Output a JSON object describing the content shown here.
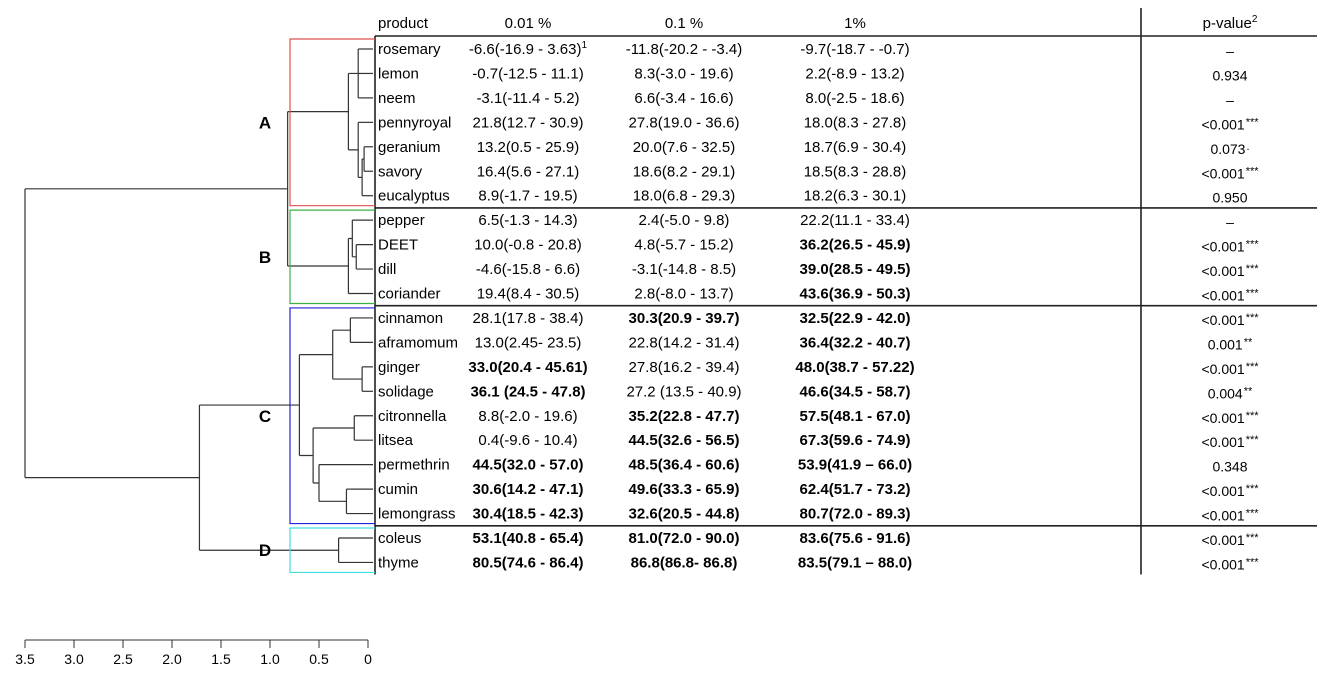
{
  "chart_data": {
    "type": "table",
    "dendrogram": {
      "axis_ticks": [
        "3.5",
        "3.0",
        "2.5",
        "2.0",
        "1.5",
        "1.0",
        "0.5",
        "0"
      ],
      "clusters": [
        {
          "label": "A",
          "color": "#e05050"
        },
        {
          "label": "B",
          "color": "#3cb043"
        },
        {
          "label": "C",
          "color": "#2222dd"
        },
        {
          "label": "D",
          "color": "#40e0e0"
        }
      ]
    },
    "columns": [
      "product",
      "0.01 %",
      "0.1 %",
      "1%",
      "p-value"
    ],
    "pvalue_sup": "2",
    "rows": [
      {
        "product": "rosemary",
        "c1": {
          "v": "-6.6",
          "ci": "(-16.9 - 3.63)",
          "sup": "1",
          "b": false
        },
        "c2": {
          "v": "-11.8",
          "ci": "(-20.2 - -3.4)",
          "b": false
        },
        "c3": {
          "v": "-9.7",
          "ci": "(-18.7 - -0.7)",
          "b": false
        },
        "p": "–",
        "stars": ""
      },
      {
        "product": "lemon",
        "c1": {
          "v": "-0.7",
          "ci": "(-12.5 - 11.1)",
          "b": false
        },
        "c2": {
          "v": "8.3",
          "ci": "(-3.0 - 19.6)",
          "b": false
        },
        "c3": {
          "v": "2.2",
          "ci": "(-8.9 - 13.2)",
          "b": false
        },
        "p": "0.934",
        "stars": ""
      },
      {
        "product": "neem",
        "c1": {
          "v": "-3.1",
          "ci": "(-11.4 - 5.2)",
          "b": false
        },
        "c2": {
          "v": "6.6",
          "ci": "(-3.4 - 16.6)",
          "b": false
        },
        "c3": {
          "v": "8.0",
          "ci": "(-2.5 - 18.6)",
          "b": false
        },
        "p": "–",
        "stars": ""
      },
      {
        "product": "pennyroyal",
        "c1": {
          "v": "21.8",
          "ci": "(12.7 - 30.9)",
          "b": false
        },
        "c2": {
          "v": "27.8",
          "ci": "(19.0 - 36.6)",
          "b": false
        },
        "c3": {
          "v": "18.0",
          "ci": "(8.3 - 27.8)",
          "b": false
        },
        "p": "<0.001",
        "stars": "***"
      },
      {
        "product": "geranium",
        "c1": {
          "v": "13.2",
          "ci": "(0.5 - 25.9)",
          "b": false
        },
        "c2": {
          "v": "20.0",
          "ci": "(7.6 - 32.5)",
          "b": false
        },
        "c3": {
          "v": "18.7",
          "ci": "(6.9 - 30.4)",
          "b": false
        },
        "p": "0.073",
        "stars": "."
      },
      {
        "product": "savory",
        "c1": {
          "v": "16.4",
          "ci": "(5.6 - 27.1)",
          "b": false
        },
        "c2": {
          "v": "18.6",
          "ci": "(8.2 - 29.1)",
          "b": false
        },
        "c3": {
          "v": "18.5",
          "ci": "(8.3 - 28.8)",
          "b": false
        },
        "p": "<0.001",
        "stars": "***"
      },
      {
        "product": "eucalyptus",
        "c1": {
          "v": "8.9",
          "ci": "(-1.7 - 19.5)",
          "b": false
        },
        "c2": {
          "v": "18.0",
          "ci": "(6.8 - 29.3)",
          "b": false
        },
        "c3": {
          "v": "18.2",
          "ci": "(6.3 - 30.1)",
          "b": false
        },
        "p": "0.950",
        "stars": ""
      },
      {
        "product": "pepper",
        "c1": {
          "v": "6.5",
          "ci": "(-1.3 - 14.3)",
          "b": false
        },
        "c2": {
          "v": "2.4",
          "ci": "(-5.0 - 9.8)",
          "b": false
        },
        "c3": {
          "v": "22.2",
          "ci": "(11.1 - 33.4)",
          "b": false
        },
        "p": "–",
        "stars": ""
      },
      {
        "product": "DEET",
        "c1": {
          "v": "10.0",
          "ci": "(-0.8 - 20.8)",
          "b": false
        },
        "c2": {
          "v": "4.8",
          "ci": "(-5.7 - 15.2)",
          "b": false
        },
        "c3": {
          "v": "36.2",
          "ci": "(26.5 - 45.9)",
          "b": true
        },
        "p": "<0.001",
        "stars": "***"
      },
      {
        "product": "dill",
        "c1": {
          "v": "-4.6",
          "ci": "(-15.8 - 6.6)",
          "b": false
        },
        "c2": {
          "v": "-3.1",
          "ci": "(-14.8 - 8.5)",
          "b": false
        },
        "c3": {
          "v": "39.0",
          "ci": "(28.5 - 49.5)",
          "b": true
        },
        "p": "<0.001",
        "stars": "***"
      },
      {
        "product": "coriander",
        "c1": {
          "v": "19.4",
          "ci": "(8.4 - 30.5)",
          "b": false
        },
        "c2": {
          "v": "2.8",
          "ci": "(-8.0 - 13.7)",
          "b": false
        },
        "c3": {
          "v": "43.6",
          "ci": "(36.9 - 50.3)",
          "b": true
        },
        "p": "<0.001",
        "stars": "***"
      },
      {
        "product": "cinnamon",
        "c1": {
          "v": "28.1",
          "ci": "(17.8 - 38.4)",
          "b": false
        },
        "c2": {
          "v": "30.3",
          "ci": "(20.9 - 39.7)",
          "b": true
        },
        "c3": {
          "v": "32.5",
          "ci": "(22.9 - 42.0)",
          "b": true
        },
        "p": "<0.001",
        "stars": "***"
      },
      {
        "product": "aframomum",
        "c1": {
          "v": "13.0",
          "ci": "(2.45- 23.5)",
          "b": false
        },
        "c2": {
          "v": "22.8",
          "ci": "(14.2 - 31.4)",
          "b": false
        },
        "c3": {
          "v": "36.4",
          "ci": "(32.2 - 40.7)",
          "b": true
        },
        "p": "0.001",
        "stars": "**"
      },
      {
        "product": "ginger",
        "c1": {
          "v": "33.0",
          "ci": "(20.4 - 45.61)",
          "b": true
        },
        "c2": {
          "v": "27.8",
          "ci": "(16.2 - 39.4)",
          "b": false
        },
        "c3": {
          "v": "48.0",
          "ci": "(38.7 - 57.22)",
          "b": true
        },
        "p": "<0.001",
        "stars": "***"
      },
      {
        "product": "solidage",
        "c1": {
          "v": "36.1",
          "ci": " (24.5 - 47.8)",
          "b": true
        },
        "c2": {
          "v": "27.2",
          "ci": " (13.5 - 40.9)",
          "b": false
        },
        "c3": {
          "v": "46.6",
          "ci": "(34.5 - 58.7)",
          "b": true
        },
        "p": "0.004",
        "stars": "**"
      },
      {
        "product": "citronnella",
        "c1": {
          "v": "8.8",
          "ci": "(-2.0 - 19.6)",
          "b": false
        },
        "c2": {
          "v": "35.2",
          "ci": "(22.8 - 47.7)",
          "b": true
        },
        "c3": {
          "v": "57.5",
          "ci": "(48.1 - 67.0)",
          "b": true
        },
        "p": "<0.001",
        "stars": "***"
      },
      {
        "product": "litsea",
        "c1": {
          "v": "0.4",
          "ci": "(-9.6 - 10.4)",
          "b": false
        },
        "c2": {
          "v": "44.5",
          "ci": "(32.6 - 56.5)",
          "b": true
        },
        "c3": {
          "v": "67.3",
          "ci": "(59.6 - 74.9)",
          "b": true
        },
        "p": "<0.001",
        "stars": "***"
      },
      {
        "product": "permethrin",
        "c1": {
          "v": "44.5",
          "ci": "(32.0 - 57.0)",
          "b": true
        },
        "c2": {
          "v": "48.5",
          "ci": "(36.4 - 60.6)",
          "b": true
        },
        "c3": {
          "v": "53.9",
          "ci": "(41.9 – 66.0)",
          "b": true
        },
        "p": "0.348",
        "stars": ""
      },
      {
        "product": "cumin",
        "c1": {
          "v": "30.6",
          "ci": "(14.2 - 47.1)",
          "b": true
        },
        "c2": {
          "v": "49.6",
          "ci": "(33.3 - 65.9)",
          "b": true
        },
        "c3": {
          "v": "62.4",
          "ci": "(51.7 - 73.2)",
          "b": true
        },
        "p": "<0.001",
        "stars": "***"
      },
      {
        "product": "lemongrass",
        "c1": {
          "v": "30.4",
          "ci": "(18.5 - 42.3)",
          "b": true
        },
        "c2": {
          "v": "32.6",
          "ci": "(20.5 - 44.8)",
          "b": true
        },
        "c3": {
          "v": "80.7",
          "ci": "(72.0 - 89.3)",
          "b": true
        },
        "p": "<0.001",
        "stars": "***"
      },
      {
        "product": "coleus",
        "c1": {
          "v": "53.1",
          "ci": "(40.8 - 65.4)",
          "b": true
        },
        "c2": {
          "v": "81.0",
          "ci": "(72.0 - 90.0)",
          "b": true
        },
        "c3": {
          "v": "83.6",
          "ci": "(75.6 - 91.6)",
          "b": true
        },
        "p": "<0.001",
        "stars": "***"
      },
      {
        "product": "thyme",
        "c1": {
          "v": "80.5",
          "ci": "(74.6 - 86.4)",
          "b": true
        },
        "c2": {
          "v": "86.8",
          "ci": "(86.8- 86.8)",
          "b": true
        },
        "c3": {
          "v": "83.5",
          "ci": "(79.1 – 88.0)",
          "b": true
        },
        "p": "<0.001",
        "stars": "***"
      }
    ]
  }
}
